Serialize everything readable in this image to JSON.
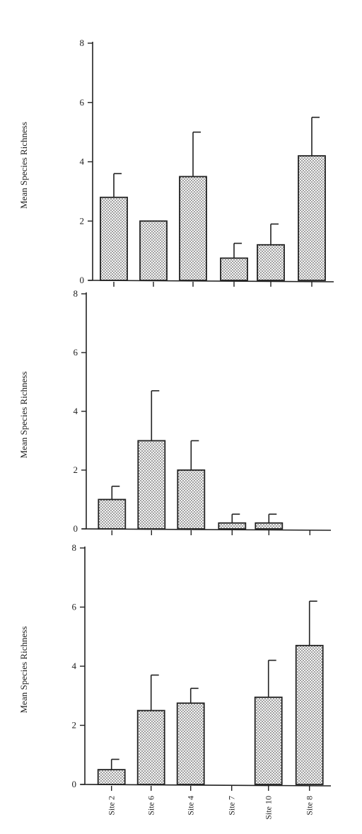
{
  "chart_data": [
    {
      "type": "bar",
      "ylabel": "Mean Species Richness",
      "ylim": [
        0,
        8
      ],
      "yticks": [
        0,
        2,
        4,
        6,
        8
      ],
      "categories": [
        "Site 2",
        "Site 6",
        "Site 4",
        "Site 7",
        "Site 10",
        "Site 8"
      ],
      "values": [
        2.8,
        2.0,
        3.5,
        0.75,
        1.2,
        4.2
      ],
      "error": [
        0.8,
        0,
        1.5,
        0.5,
        0.7,
        1.3
      ]
    },
    {
      "type": "bar",
      "ylabel": "Mean Species Richness",
      "ylim": [
        0,
        8
      ],
      "yticks": [
        0,
        2,
        4,
        6,
        8
      ],
      "categories": [
        "Site 2",
        "Site 6",
        "Site 4",
        "Site 7",
        "Site 10",
        "Site 8"
      ],
      "values": [
        1.0,
        3.0,
        2.0,
        0.2,
        0.2,
        0
      ],
      "error": [
        0.45,
        1.7,
        1.0,
        0.3,
        0.3,
        0
      ]
    },
    {
      "type": "bar",
      "ylabel": "Mean Species Richness",
      "ylim": [
        0,
        8
      ],
      "yticks": [
        0,
        2,
        4,
        6,
        8
      ],
      "categories": [
        "Site 2",
        "Site 6",
        "Site 4",
        "Site 7",
        "Site 10",
        "Site 8"
      ],
      "values": [
        0.5,
        2.5,
        2.75,
        0,
        2.95,
        4.7
      ],
      "error": [
        0.35,
        1.2,
        0.5,
        0,
        1.25,
        1.5
      ]
    }
  ]
}
